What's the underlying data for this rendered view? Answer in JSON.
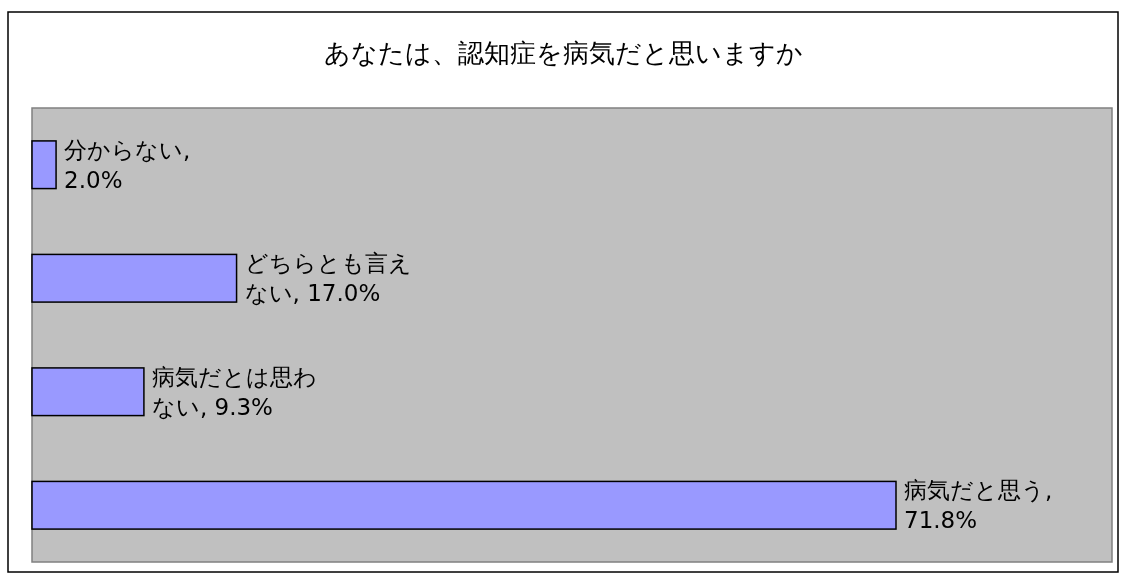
{
  "chart_data": {
    "type": "bar",
    "orientation": "horizontal",
    "title": "あなたは、認知症を病気だと思いますか",
    "categories": [
      null,
      null,
      null,
      null
    ],
    "values": [
      2.0,
      17.0,
      9.3,
      71.8
    ],
    "value_labels": [
      "分からない, 2.0%",
      "どちらとも言えない, 17.0%",
      "病気だとは思わない, 9.3%",
      "病気だと思う, 71.8%"
    ],
    "color": "#9999ff"
  }
}
